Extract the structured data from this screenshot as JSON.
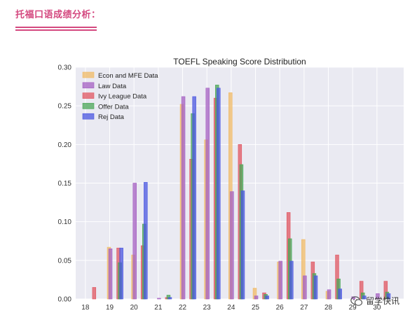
{
  "header": {
    "title": "托福口语成绩分析："
  },
  "watermark": {
    "text": "留学快讯",
    "icon": "wechat-icon"
  },
  "chart_data": {
    "type": "bar",
    "title": "TOEFL Speaking Score Distribution",
    "xlabel": "",
    "ylabel": "",
    "categories": [
      18,
      19,
      20,
      21,
      22,
      23,
      24,
      25,
      26,
      27,
      28,
      29,
      30
    ],
    "ylim": [
      0,
      0.3
    ],
    "yticks": [
      "0.00",
      "0.05",
      "0.10",
      "0.15",
      "0.20",
      "0.25",
      "0.30"
    ],
    "grid": true,
    "legend_position": "top-left",
    "series": [
      {
        "name": "Econ and MFE Data",
        "color": "#f0b964",
        "values": [
          0.0,
          0.067,
          0.057,
          0.0,
          0.252,
          0.206,
          0.267,
          0.014,
          0.048,
          0.077,
          0.01,
          0.0,
          0.0
        ]
      },
      {
        "name": "Law Data",
        "color": "#a45fc2",
        "values": [
          0.0,
          0.065,
          0.15,
          0.001,
          0.262,
          0.273,
          0.139,
          0.004,
          0.049,
          0.03,
          0.012,
          0.003,
          0.007
        ]
      },
      {
        "name": "Ivy League Data",
        "color": "#e05560",
        "values": [
          0.015,
          0.066,
          0.069,
          0.002,
          0.181,
          0.26,
          0.2,
          0.008,
          0.112,
          0.048,
          0.057,
          0.023,
          0.023
        ]
      },
      {
        "name": "Offer Data",
        "color": "#4aa556",
        "values": [
          0.0,
          0.047,
          0.097,
          0.005,
          0.24,
          0.277,
          0.174,
          0.006,
          0.078,
          0.033,
          0.026,
          0.008,
          0.009
        ]
      },
      {
        "name": "Rej Data",
        "color": "#4a56e0",
        "values": [
          0.0,
          0.066,
          0.151,
          0.002,
          0.262,
          0.273,
          0.14,
          0.004,
          0.049,
          0.03,
          0.013,
          0.004,
          0.007
        ]
      }
    ]
  }
}
